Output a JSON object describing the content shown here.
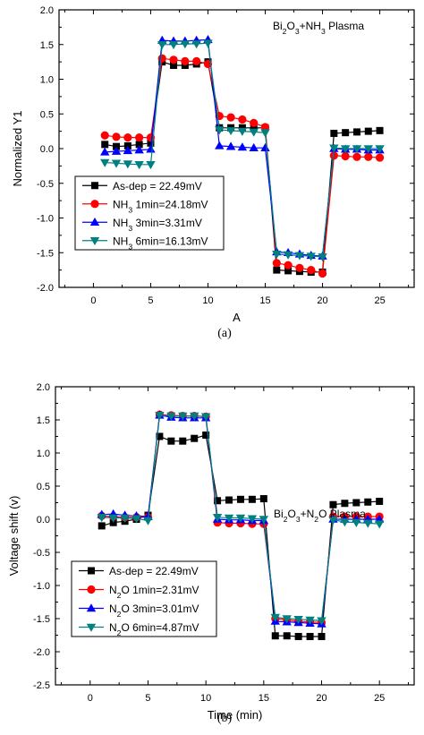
{
  "chart_data": [
    {
      "type": "line",
      "panel": "(a)",
      "annotation": "Bi2O3+NH3 Plasma",
      "annotation_parts": [
        {
          "t": "Bi",
          "s": false
        },
        {
          "t": "2",
          "s": true
        },
        {
          "t": "O",
          "s": false
        },
        {
          "t": "3",
          "s": true
        },
        {
          "t": "+NH",
          "s": false
        },
        {
          "t": "3",
          "s": true
        },
        {
          "t": " Plasma",
          "s": false
        }
      ],
      "xlabel": "A",
      "ylabel": "Normalized Y1",
      "xlim": [
        -3,
        28
      ],
      "ylim": [
        -2.0,
        2.0
      ],
      "xticks": [
        0,
        5,
        10,
        15,
        20,
        25
      ],
      "yticks": [
        -2.0,
        -1.5,
        -1.0,
        -0.5,
        0.0,
        0.5,
        1.0,
        1.5,
        2.0
      ],
      "x": [
        1,
        2,
        3,
        4,
        5,
        6,
        7,
        8,
        9,
        10,
        11,
        12,
        13,
        14,
        15,
        16,
        17,
        18,
        19,
        20,
        21,
        22,
        23,
        24,
        25
      ],
      "legend_position": "bottom-left",
      "series": [
        {
          "name": "As-dep = 22.49mV",
          "name_parts": [
            {
              "t": "As-dep = 22.49mV",
              "s": false
            }
          ],
          "color": "#000000",
          "marker": "square",
          "values": [
            0.06,
            0.03,
            0.04,
            0.06,
            0.08,
            1.25,
            1.2,
            1.2,
            1.22,
            1.25,
            0.3,
            0.3,
            0.3,
            0.3,
            0.3,
            -1.75,
            -1.76,
            -1.77,
            -1.78,
            -1.78,
            0.22,
            0.23,
            0.24,
            0.25,
            0.26
          ]
        },
        {
          "name": "NH3 1min=24.18mV",
          "name_parts": [
            {
              "t": "NH",
              "s": false
            },
            {
              "t": "3",
              "s": true
            },
            {
              "t": " 1min=24.18mV",
              "s": false
            }
          ],
          "color": "#ff0000",
          "marker": "circle",
          "values": [
            0.19,
            0.17,
            0.16,
            0.16,
            0.16,
            1.3,
            1.28,
            1.26,
            1.26,
            1.22,
            0.47,
            0.45,
            0.42,
            0.37,
            0.31,
            -1.65,
            -1.68,
            -1.72,
            -1.75,
            -1.8,
            -0.1,
            -0.11,
            -0.12,
            -0.12,
            -0.13
          ]
        },
        {
          "name": "NH3 3min=3.31mV",
          "name_parts": [
            {
              "t": "NH",
              "s": false
            },
            {
              "t": "3",
              "s": true
            },
            {
              "t": " 3min=3.31mV",
              "s": false
            }
          ],
          "color": "#0000ff",
          "marker": "triangle-up",
          "values": [
            -0.05,
            -0.04,
            -0.03,
            -0.02,
            -0.01,
            1.56,
            1.55,
            1.55,
            1.56,
            1.57,
            0.04,
            0.03,
            0.02,
            0.01,
            0.01,
            -1.49,
            -1.5,
            -1.52,
            -1.54,
            -1.55,
            0.0,
            -0.01,
            -0.01,
            -0.02,
            -0.02
          ]
        },
        {
          "name": "NH3 6min=16.13mV",
          "name_parts": [
            {
              "t": "NH",
              "s": false
            },
            {
              "t": "3",
              "s": true
            },
            {
              "t": " 6min=16.13mV",
              "s": false
            }
          ],
          "color": "#008080",
          "marker": "triangle-down",
          "values": [
            -0.2,
            -0.21,
            -0.22,
            -0.23,
            -0.23,
            1.5,
            1.5,
            1.51,
            1.51,
            1.52,
            0.27,
            0.26,
            0.25,
            0.24,
            0.23,
            -1.52,
            -1.53,
            -1.54,
            -1.55,
            -1.56,
            0.01,
            0.0,
            0.0,
            0.0,
            0.0
          ]
        }
      ]
    },
    {
      "type": "line",
      "panel": "(b)",
      "annotation": "Bi2O3+N2O Plasma",
      "annotation_parts": [
        {
          "t": "Bi",
          "s": false
        },
        {
          "t": "2",
          "s": true
        },
        {
          "t": "O",
          "s": false
        },
        {
          "t": "3",
          "s": true
        },
        {
          "t": "+N",
          "s": false
        },
        {
          "t": "2",
          "s": true
        },
        {
          "t": "O Plasma",
          "s": false
        }
      ],
      "xlabel": "Time (min)",
      "ylabel": "Voltage shift (v)",
      "xlim": [
        -3,
        28
      ],
      "ylim": [
        -2.5,
        2.0
      ],
      "xticks": [
        0,
        5,
        10,
        15,
        20,
        25
      ],
      "yticks": [
        -2.5,
        -2.0,
        -1.5,
        -1.0,
        -0.5,
        0.0,
        0.5,
        1.0,
        1.5,
        2.0
      ],
      "x": [
        1,
        2,
        3,
        4,
        5,
        6,
        7,
        8,
        9,
        10,
        11,
        12,
        13,
        14,
        15,
        16,
        17,
        18,
        19,
        20,
        21,
        22,
        23,
        24,
        25
      ],
      "legend_position": "bottom-left",
      "series": [
        {
          "name": "As-dep = 22.49mV",
          "name_parts": [
            {
              "t": "As-dep = 22.49mV",
              "s": false
            }
          ],
          "color": "#000000",
          "marker": "square",
          "values": [
            -0.1,
            -0.05,
            -0.03,
            0.0,
            0.06,
            1.25,
            1.18,
            1.18,
            1.22,
            1.27,
            0.28,
            0.29,
            0.3,
            0.3,
            0.31,
            -1.76,
            -1.76,
            -1.77,
            -1.77,
            -1.77,
            0.22,
            0.24,
            0.25,
            0.26,
            0.27
          ]
        },
        {
          "name": "N2O 1min=2.31mV",
          "name_parts": [
            {
              "t": "N",
              "s": false
            },
            {
              "t": "2",
              "s": true
            },
            {
              "t": "O 1min=2.31mV",
              "s": false
            }
          ],
          "color": "#ff0000",
          "marker": "circle",
          "values": [
            0.05,
            0.04,
            0.03,
            0.03,
            0.03,
            1.58,
            1.57,
            1.56,
            1.56,
            1.55,
            -0.05,
            -0.06,
            -0.06,
            -0.07,
            -0.07,
            -1.5,
            -1.52,
            -1.54,
            -1.55,
            -1.56,
            0.04,
            0.04,
            0.04,
            0.04,
            0.04
          ]
        },
        {
          "name": "N2O 3min=3.01mV",
          "name_parts": [
            {
              "t": "N",
              "s": false
            },
            {
              "t": "2",
              "s": true
            },
            {
              "t": "O 3min=3.01mV",
              "s": false
            }
          ],
          "color": "#0000ff",
          "marker": "triangle-up",
          "values": [
            0.07,
            0.08,
            0.06,
            0.05,
            0.04,
            1.57,
            1.54,
            1.53,
            1.53,
            1.53,
            0.0,
            -0.01,
            -0.01,
            -0.02,
            -0.02,
            -1.54,
            -1.55,
            -1.56,
            -1.57,
            -1.58,
            0.0,
            0.0,
            0.0,
            0.0,
            0.0
          ]
        },
        {
          "name": "N2O 6min=4.87mV",
          "name_parts": [
            {
              "t": "N",
              "s": false
            },
            {
              "t": "2",
              "s": true
            },
            {
              "t": "O 6min=4.87mV",
              "s": false
            }
          ],
          "color": "#008080",
          "marker": "triangle-down",
          "values": [
            0.03,
            0.02,
            0.02,
            0.01,
            -0.02,
            1.57,
            1.56,
            1.56,
            1.56,
            1.55,
            0.03,
            0.02,
            0.02,
            0.01,
            0.0,
            -1.48,
            -1.5,
            -1.51,
            -1.52,
            -1.53,
            -0.01,
            -0.04,
            -0.05,
            -0.06,
            -0.07
          ]
        }
      ]
    }
  ]
}
